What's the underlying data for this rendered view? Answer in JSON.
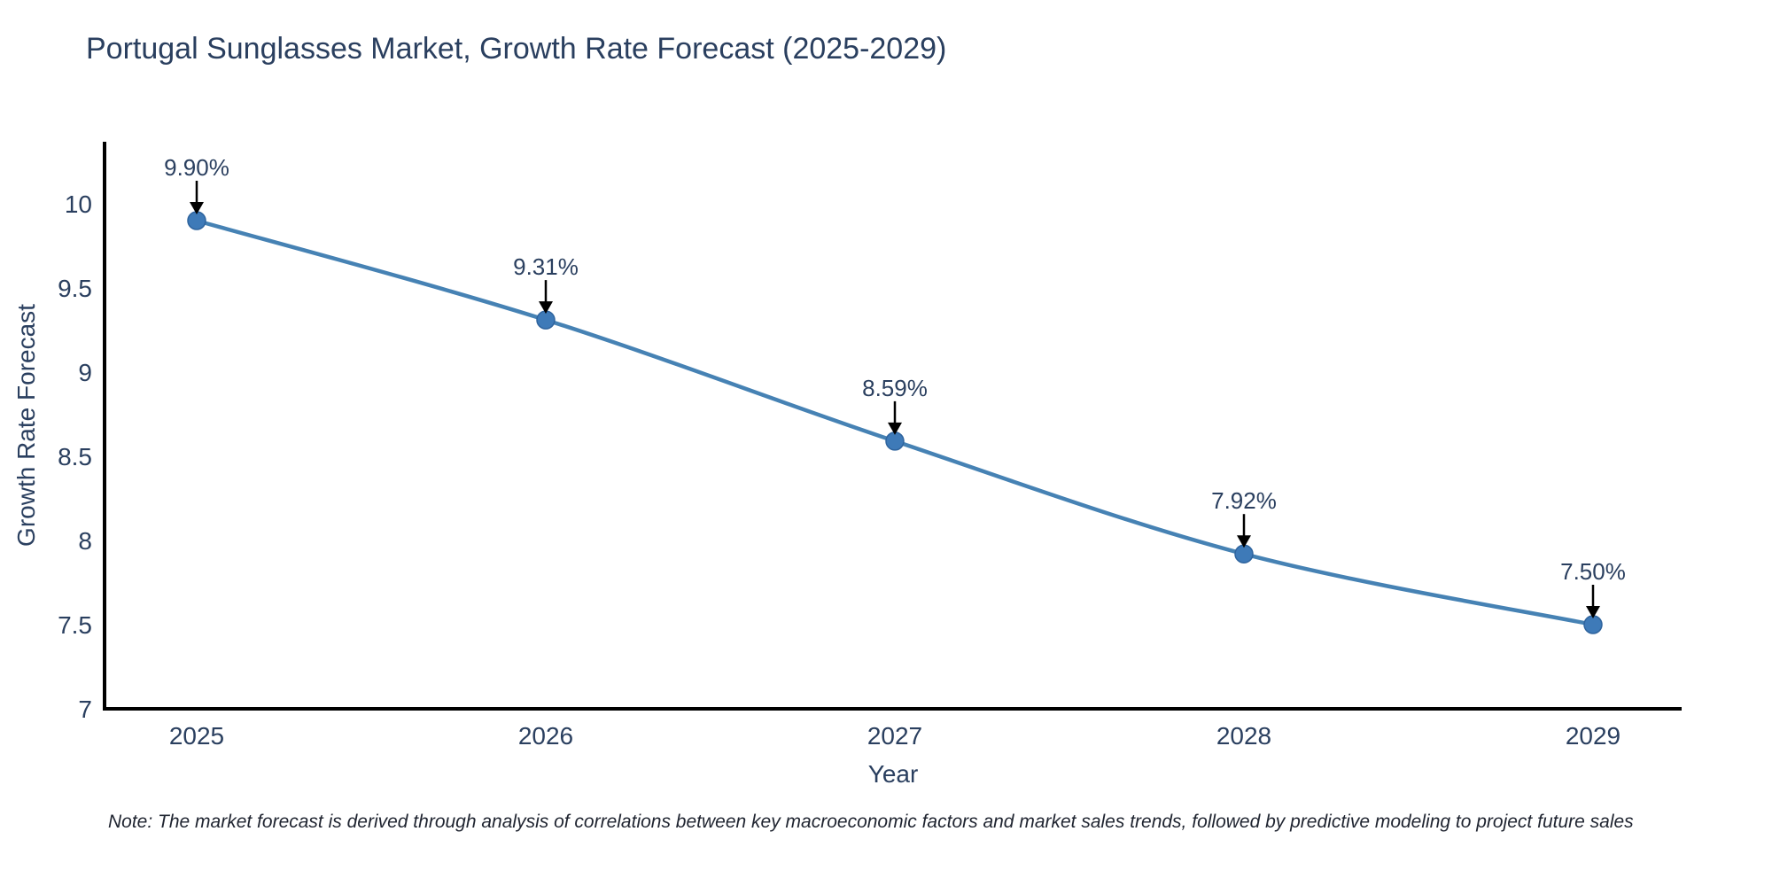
{
  "page": {
    "background": "#ffffff"
  },
  "chart": {
    "note": "Note: The market forecast is derived through analysis of correlations between key macroeconomic factors and market sales trends, followed by predictive modeling to project future sales"
  },
  "chart_data": {
    "type": "line",
    "title": "Portugal Sunglasses Market, Growth Rate Forecast (2025-2029)",
    "xlabel": "Year",
    "ylabel": "Growth Rate Forecast",
    "x": [
      2025,
      2026,
      2027,
      2028,
      2029
    ],
    "values": [
      9.9,
      9.31,
      8.59,
      7.92,
      7.5
    ],
    "point_labels": [
      "9.90%",
      "9.31%",
      "8.59%",
      "7.92%",
      "7.50%"
    ],
    "xtick_labels": [
      "2025",
      "2026",
      "2027",
      "2028",
      "2029"
    ],
    "yticks": [
      7,
      7.5,
      8,
      8.5,
      9,
      9.5,
      10
    ],
    "ytick_labels": [
      "7",
      "7.5",
      "8",
      "8.5",
      "9",
      "9.5",
      "10"
    ],
    "ylim": [
      7,
      10.37
    ],
    "grid": false,
    "legend": false,
    "line_shape": "spline",
    "annotations_have_arrows": true,
    "colors": {
      "line": "#4682b4",
      "marker_fill": "#3e7ab8",
      "marker_edge": "#2f649e",
      "axis_line": "#000000",
      "tick_text": "#2a3f5f",
      "annotation_text": "#2a3f5f",
      "arrow": "#000000",
      "title_text": "#2a3f5f",
      "note_text": "#1f2430"
    }
  }
}
